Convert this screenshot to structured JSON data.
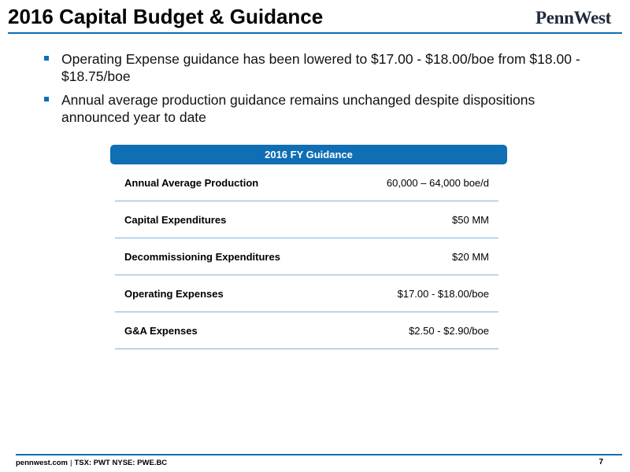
{
  "slide": {
    "title": "2016 Capital Budget & Guidance",
    "logo_text": "PennWest",
    "accent_color": "#0f6eb4"
  },
  "bullets": [
    "Operating Expense guidance has been lowered to $17.00 - $18.00/boe from $18.00 - $18.75/boe",
    "Annual average production guidance remains unchanged despite dispositions announced year to date"
  ],
  "guidance_table": {
    "header": "2016 FY Guidance",
    "rows": [
      {
        "label": "Annual Average Production",
        "value": "60,000 – 64,000 boe/d"
      },
      {
        "label": "Capital Expenditures",
        "value": "$50 MM"
      },
      {
        "label": "Decommissioning Expenditures",
        "value": "$20 MM"
      },
      {
        "label": "Operating Expenses",
        "value": "$17.00 - $18.00/boe"
      },
      {
        "label": "G&A Expenses",
        "value": "$2.50 - $2.90/boe"
      }
    ]
  },
  "footer": {
    "site": "pennwest.com",
    "separator": "|",
    "tickers": "TSX: PWT  NYSE: PWE.BC",
    "page_number": "7"
  }
}
